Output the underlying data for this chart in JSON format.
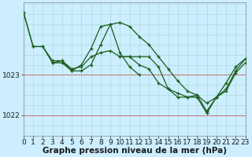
{
  "background_color": "#cceeff",
  "line_color": "#1a5c1a",
  "grid_color": "#aadddd",
  "xlabel": "Graphe pression niveau de la mer (hPa)",
  "xlabel_fontsize": 7.5,
  "tick_fontsize": 6.5,
  "ylim": [
    1021.5,
    1024.8
  ],
  "yticks": [
    1022,
    1023
  ],
  "xlim": [
    0,
    23
  ],
  "xticks": [
    0,
    1,
    2,
    3,
    4,
    5,
    6,
    7,
    8,
    9,
    10,
    11,
    12,
    13,
    14,
    15,
    16,
    17,
    18,
    19,
    20,
    21,
    22,
    23
  ],
  "series": [
    {
      "x": [
        0,
        1,
        2,
        3,
        4,
        5,
        6,
        7,
        8,
        9,
        10,
        11,
        12,
        13,
        14,
        15,
        16,
        17,
        18,
        19,
        20,
        21,
        22,
        23
      ],
      "y": [
        1024.55,
        1023.7,
        1023.7,
        1023.35,
        1023.35,
        1023.15,
        1023.2,
        1023.45,
        1023.55,
        1023.6,
        1023.45,
        1023.45,
        1023.25,
        1023.15,
        1022.8,
        1022.65,
        1022.55,
        1022.45,
        1022.5,
        1022.1,
        1022.45,
        1022.6,
        1023.05,
        1023.3
      ]
    },
    {
      "x": [
        0,
        1,
        2,
        3,
        4,
        5,
        6,
        7,
        8,
        9,
        10,
        11,
        12
      ],
      "y": [
        1024.55,
        1023.7,
        1023.7,
        1023.3,
        1023.35,
        1023.1,
        1023.25,
        1023.65,
        1024.2,
        1024.25,
        1023.55,
        1023.2,
        1023.0
      ]
    },
    {
      "x": [
        3,
        4,
        5,
        6,
        7,
        8,
        9,
        10,
        11,
        12,
        13,
        14,
        15,
        16,
        17,
        18,
        19,
        20,
        21,
        22,
        23
      ],
      "y": [
        1023.3,
        1023.3,
        1023.1,
        1023.1,
        1023.25,
        1023.75,
        1024.25,
        1024.3,
        1024.2,
        1023.95,
        1023.75,
        1023.45,
        1023.15,
        1022.85,
        1022.6,
        1022.5,
        1022.3,
        1022.45,
        1022.8,
        1023.2,
        1023.4
      ]
    },
    {
      "x": [
        10,
        11,
        12,
        13,
        14,
        15,
        16,
        17,
        18,
        19,
        20,
        21,
        22,
        23
      ],
      "y": [
        1023.45,
        1023.45,
        1023.45,
        1023.45,
        1023.2,
        1022.65,
        1022.45,
        1022.45,
        1022.45,
        1022.05,
        1022.45,
        1022.65,
        1023.1,
        1023.4
      ]
    }
  ]
}
